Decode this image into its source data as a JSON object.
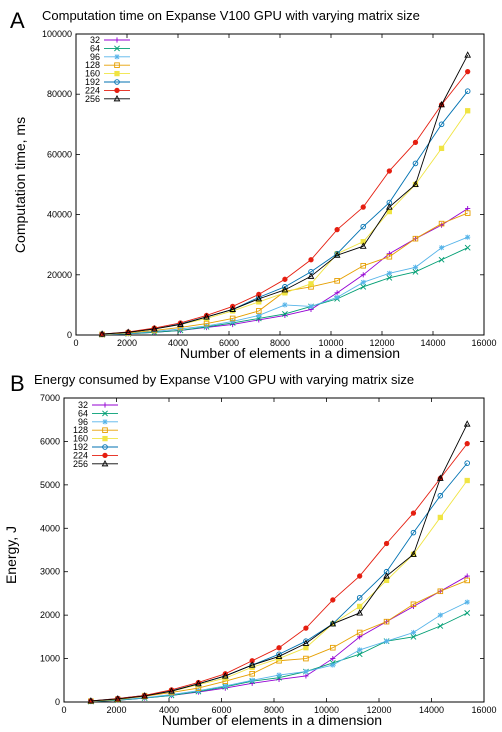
{
  "chart_data": [
    {
      "type": "line",
      "panel": "A",
      "title": "Computation time on Expanse V100 GPU with varying matrix size",
      "xlabel": "Number of elements in a dimension",
      "ylabel": "Computation time, ms",
      "xlim": [
        0,
        16000
      ],
      "ylim": [
        0,
        100000
      ],
      "xticks": [
        0,
        2000,
        4000,
        6000,
        8000,
        10000,
        12000,
        14000,
        16000
      ],
      "yticks": [
        0,
        20000,
        40000,
        60000,
        80000,
        100000
      ],
      "x": [
        1024,
        2048,
        3072,
        4096,
        5120,
        6144,
        7168,
        8192,
        9216,
        10240,
        11264,
        12288,
        13312,
        14336,
        15360
      ],
      "legend_position": "top-left",
      "grid": false,
      "series": [
        {
          "name": "32",
          "color": "#9400d3",
          "marker": "plus",
          "values": [
            100,
            400,
            900,
            1500,
            2500,
            3500,
            5000,
            6500,
            8500,
            14000,
            20000,
            27000,
            32000,
            36500,
            42000
          ]
        },
        {
          "name": "64",
          "color": "#009e73",
          "marker": "x",
          "values": [
            100,
            400,
            900,
            1500,
            2700,
            4000,
            5500,
            7000,
            9500,
            12000,
            16000,
            19000,
            21000,
            25000,
            29000
          ]
        },
        {
          "name": "96",
          "color": "#56b4e9",
          "marker": "star",
          "values": [
            150,
            500,
            1200,
            2000,
            3000,
            4500,
            6500,
            10000,
            9500,
            12500,
            17500,
            20500,
            22500,
            29000,
            32500
          ]
        },
        {
          "name": "128",
          "color": "#e69f00",
          "marker": "square",
          "values": [
            200,
            700,
            1500,
            2500,
            3800,
            5500,
            8000,
            14500,
            16000,
            18000,
            23000,
            26000,
            32000,
            37000,
            40500
          ]
        },
        {
          "name": "160",
          "color": "#f0e442",
          "marker": "fsquare",
          "values": [
            250,
            800,
            2000,
            3500,
            5500,
            8000,
            11000,
            14000,
            17000,
            27000,
            31000,
            41000,
            50000,
            62000,
            74500
          ]
        },
        {
          "name": "192",
          "color": "#0072b2",
          "marker": "circle",
          "values": [
            300,
            900,
            2000,
            3700,
            6000,
            8500,
            12500,
            16000,
            21000,
            27000,
            36000,
            44000,
            57000,
            70000,
            81000
          ]
        },
        {
          "name": "224",
          "color": "#e51e10",
          "marker": "fcircle",
          "values": [
            300,
            1000,
            2300,
            4000,
            6500,
            9500,
            13500,
            18500,
            25000,
            35000,
            42500,
            54500,
            64000,
            76500,
            87500
          ]
        },
        {
          "name": "256",
          "color": "#000000",
          "marker": "triangle",
          "values": [
            300,
            900,
            2000,
            3500,
            6000,
            8500,
            12000,
            15000,
            19500,
            26500,
            29500,
            42500,
            50000,
            76500,
            93000
          ]
        }
      ]
    },
    {
      "type": "line",
      "panel": "B",
      "title": "Energy consumed by Expanse V100 GPU with varying matrix size",
      "xlabel": "Number of elements in a dimension",
      "ylabel": "Energy, J",
      "xlim": [
        0,
        16000
      ],
      "ylim": [
        0,
        7000
      ],
      "xticks": [
        0,
        2000,
        4000,
        6000,
        8000,
        10000,
        12000,
        14000,
        16000
      ],
      "yticks": [
        0,
        1000,
        2000,
        3000,
        4000,
        5000,
        6000,
        7000
      ],
      "x": [
        1024,
        2048,
        3072,
        4096,
        5120,
        6144,
        7168,
        8192,
        9216,
        10240,
        11264,
        12288,
        13312,
        14336,
        15360
      ],
      "legend_position": "top-left",
      "grid": false,
      "series": [
        {
          "name": "32",
          "color": "#9400d3",
          "marker": "plus",
          "values": [
            10,
            40,
            90,
            150,
            230,
            320,
            430,
            520,
            600,
            1000,
            1500,
            1850,
            2200,
            2550,
            2900
          ]
        },
        {
          "name": "64",
          "color": "#009e73",
          "marker": "x",
          "values": [
            10,
            40,
            90,
            150,
            240,
            350,
            480,
            560,
            700,
            900,
            1100,
            1400,
            1500,
            1750,
            2050
          ]
        },
        {
          "name": "96",
          "color": "#56b4e9",
          "marker": "star",
          "values": [
            15,
            50,
            100,
            170,
            260,
            370,
            500,
            620,
            700,
            850,
            1200,
            1400,
            1600,
            2000,
            2300
          ]
        },
        {
          "name": "128",
          "color": "#e69f00",
          "marker": "square",
          "values": [
            20,
            60,
            130,
            220,
            320,
            480,
            650,
            950,
            1000,
            1250,
            1600,
            1850,
            2250,
            2550,
            2800
          ]
        },
        {
          "name": "160",
          "color": "#f0e442",
          "marker": "fsquare",
          "values": [
            20,
            70,
            150,
            250,
            400,
            550,
            800,
            1000,
            1250,
            1800,
            2200,
            2800,
            3400,
            4250,
            5100
          ]
        },
        {
          "name": "192",
          "color": "#0072b2",
          "marker": "circle",
          "values": [
            25,
            80,
            150,
            260,
            420,
            600,
            850,
            1100,
            1400,
            1800,
            2400,
            3000,
            3900,
            4750,
            5500
          ]
        },
        {
          "name": "224",
          "color": "#e51e10",
          "marker": "fcircle",
          "values": [
            25,
            80,
            150,
            280,
            450,
            650,
            950,
            1250,
            1700,
            2350,
            2900,
            3650,
            4350,
            5150,
            5950
          ]
        },
        {
          "name": "256",
          "color": "#000000",
          "marker": "triangle",
          "values": [
            25,
            70,
            140,
            250,
            420,
            600,
            850,
            1050,
            1350,
            1800,
            2050,
            2900,
            3400,
            5150,
            6400
          ]
        }
      ]
    }
  ]
}
